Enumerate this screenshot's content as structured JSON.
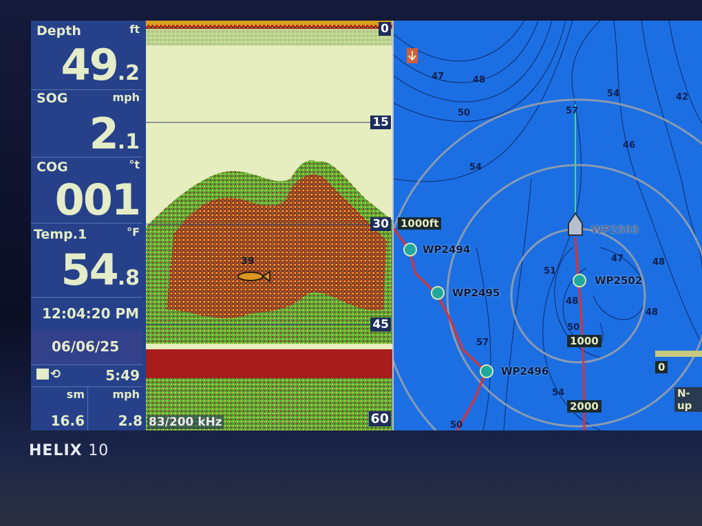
{
  "device": {
    "brand": "HELIX",
    "model": "10"
  },
  "data_panel": {
    "depth": {
      "label": "Depth",
      "unit": "ft",
      "value_int": "49",
      "value_dec": ".2"
    },
    "sog": {
      "label": "SOG",
      "unit": "mph",
      "value_int": "2",
      "value_dec": ".1"
    },
    "cog": {
      "label": "COG",
      "unit": "°t",
      "value": "001"
    },
    "temp": {
      "label": "Temp.1",
      "unit": "°F",
      "value_int": "54",
      "value_dec": ".8"
    },
    "time": "12:04:20 PM",
    "date": "06/06/25",
    "timer": "5:49",
    "trip_distance": {
      "unit": "sm",
      "value": "16.6"
    },
    "avg_speed": {
      "unit": "mph",
      "value": "2.8"
    }
  },
  "sonar": {
    "depth_scale": [
      "0",
      "15",
      "30",
      "45",
      "60"
    ],
    "fish_depth": "39",
    "frequency": "83/200 kHz",
    "colors": {
      "background": "#e6edbe",
      "strong": "#a01818",
      "mid": "#e0d020",
      "weak": "#3aa040"
    }
  },
  "map": {
    "scale_label": "1000ft",
    "waypoints": [
      "WP2494",
      "WP2495",
      "WP2496",
      "WP2503",
      "WP2502"
    ],
    "range_rings": [
      "1000",
      "2000"
    ],
    "orientation": "N-up",
    "scale_zero": "0",
    "contour_labels": [
      "47",
      "48",
      "50",
      "54",
      "57",
      "54",
      "46",
      "42",
      "51",
      "48",
      "50",
      "47",
      "48",
      "48",
      "57",
      "54",
      "50"
    ],
    "colors": {
      "water": "#1c6fe2",
      "track": "#e03030",
      "heading_line": "#40e080"
    }
  }
}
